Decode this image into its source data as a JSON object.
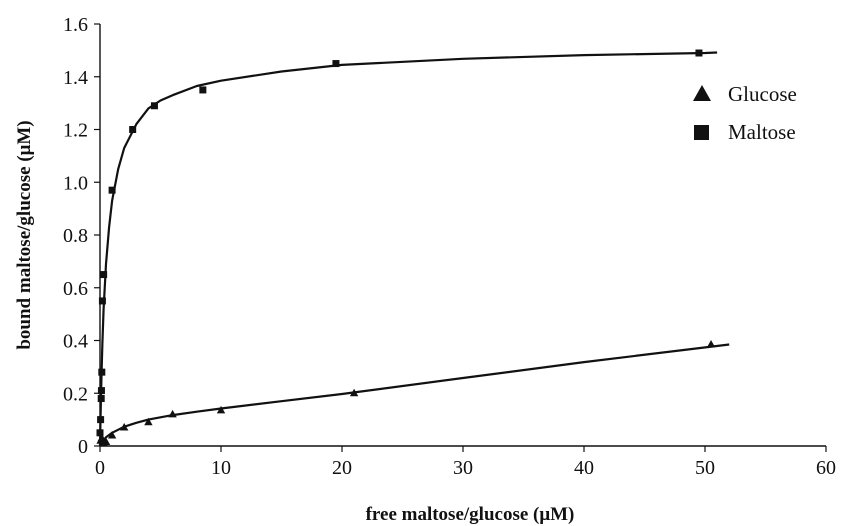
{
  "chart_data": {
    "type": "scatter",
    "title": "",
    "xlabel": "free maltose/glucose (μM)",
    "ylabel": "bound maltose/glucose (μM)",
    "xlim": [
      0,
      60
    ],
    "ylim": [
      0,
      1.6
    ],
    "xticks": [
      0,
      10,
      20,
      30,
      40,
      50,
      60
    ],
    "xtick_labels": [
      "0",
      "10",
      "20",
      "30",
      "40",
      "50",
      "60"
    ],
    "yticks": [
      0,
      0.2,
      0.4,
      0.6,
      0.8,
      1.0,
      1.2,
      1.4,
      1.6
    ],
    "ytick_labels": [
      "0",
      "0.2",
      "0.4",
      "0.6",
      "0.8",
      "1.0",
      "1.2",
      "1.4",
      "1.6"
    ],
    "grid": false,
    "legend": {
      "position": "top-right"
    },
    "colors": {
      "marks": "#111111"
    },
    "series": [
      {
        "name": "Glucose",
        "marker": "triangle",
        "points": [
          {
            "x": 0.05,
            "y": 0.02
          },
          {
            "x": 0.15,
            "y": 0.03
          },
          {
            "x": 0.3,
            "y": 0.01
          },
          {
            "x": 0.5,
            "y": 0.015
          },
          {
            "x": 1.0,
            "y": 0.04
          },
          {
            "x": 2.0,
            "y": 0.07
          },
          {
            "x": 4.0,
            "y": 0.09
          },
          {
            "x": 6.0,
            "y": 0.12
          },
          {
            "x": 10.0,
            "y": 0.135
          },
          {
            "x": 21.0,
            "y": 0.2
          },
          {
            "x": 50.5,
            "y": 0.385
          }
        ],
        "fit": [
          {
            "x": 0.0,
            "y": 0.0
          },
          {
            "x": 0.25,
            "y": 0.02
          },
          {
            "x": 0.5,
            "y": 0.033
          },
          {
            "x": 1.0,
            "y": 0.05
          },
          {
            "x": 2.0,
            "y": 0.073
          },
          {
            "x": 3.0,
            "y": 0.088
          },
          {
            "x": 4.0,
            "y": 0.1
          },
          {
            "x": 6.0,
            "y": 0.117
          },
          {
            "x": 8.0,
            "y": 0.13
          },
          {
            "x": 10.0,
            "y": 0.142
          },
          {
            "x": 15.0,
            "y": 0.17
          },
          {
            "x": 20.0,
            "y": 0.197
          },
          {
            "x": 30.0,
            "y": 0.258
          },
          {
            "x": 40.0,
            "y": 0.318
          },
          {
            "x": 52.0,
            "y": 0.385
          }
        ]
      },
      {
        "name": "Maltose",
        "marker": "square",
        "points": [
          {
            "x": 0.0,
            "y": 0.05
          },
          {
            "x": 0.05,
            "y": 0.1
          },
          {
            "x": 0.1,
            "y": 0.18
          },
          {
            "x": 0.12,
            "y": 0.21
          },
          {
            "x": 0.15,
            "y": 0.28
          },
          {
            "x": 0.2,
            "y": 0.55
          },
          {
            "x": 0.3,
            "y": 0.65
          },
          {
            "x": 1.0,
            "y": 0.97
          },
          {
            "x": 2.7,
            "y": 1.2
          },
          {
            "x": 4.5,
            "y": 1.29
          },
          {
            "x": 8.5,
            "y": 1.35
          },
          {
            "x": 19.5,
            "y": 1.45
          },
          {
            "x": 49.5,
            "y": 1.49
          }
        ],
        "fit": [
          {
            "x": 0.0,
            "y": 0.0
          },
          {
            "x": 0.05,
            "y": 0.12
          },
          {
            "x": 0.1,
            "y": 0.22
          },
          {
            "x": 0.15,
            "y": 0.31
          },
          {
            "x": 0.2,
            "y": 0.39
          },
          {
            "x": 0.3,
            "y": 0.52
          },
          {
            "x": 0.5,
            "y": 0.69
          },
          {
            "x": 0.75,
            "y": 0.83
          },
          {
            "x": 1.0,
            "y": 0.93
          },
          {
            "x": 1.5,
            "y": 1.05
          },
          {
            "x": 2.0,
            "y": 1.13
          },
          {
            "x": 3.0,
            "y": 1.22
          },
          {
            "x": 4.0,
            "y": 1.28
          },
          {
            "x": 5.0,
            "y": 1.31
          },
          {
            "x": 6.0,
            "y": 1.33
          },
          {
            "x": 8.0,
            "y": 1.365
          },
          {
            "x": 10.0,
            "y": 1.385
          },
          {
            "x": 15.0,
            "y": 1.42
          },
          {
            "x": 20.0,
            "y": 1.445
          },
          {
            "x": 30.0,
            "y": 1.468
          },
          {
            "x": 40.0,
            "y": 1.482
          },
          {
            "x": 50.0,
            "y": 1.49
          },
          {
            "x": 51.0,
            "y": 1.492
          }
        ]
      }
    ]
  }
}
